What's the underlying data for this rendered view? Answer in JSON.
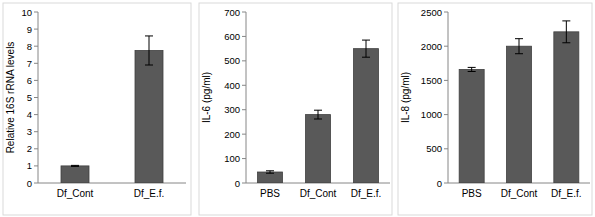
{
  "chart_data": [
    {
      "type": "bar",
      "ylabel": "Relative 16S rRNA levels",
      "categories": [
        "Df_Cont",
        "Df_E.f."
      ],
      "values": [
        1,
        7.75
      ],
      "errors": [
        0.03,
        0.85
      ],
      "color": "#595959",
      "ylim": [
        0,
        10
      ],
      "yticks": [
        0,
        1,
        2,
        3,
        4,
        5,
        6,
        7,
        8,
        9,
        10
      ],
      "grid": false
    },
    {
      "type": "bar",
      "ylabel": "IL-6 (pg/ml)",
      "categories": [
        "PBS",
        "Df_Cont",
        "Df_E.f."
      ],
      "values": [
        45,
        280,
        550
      ],
      "errors": [
        5,
        18,
        35
      ],
      "color": "#595959",
      "ylim": [
        0,
        700
      ],
      "yticks": [
        0,
        100,
        200,
        300,
        400,
        500,
        600,
        700
      ],
      "grid": false
    },
    {
      "type": "bar",
      "ylabel": "IL-8 (pg/ml)",
      "categories": [
        "PBS",
        "Df_Cont",
        "Df_E.f."
      ],
      "values": [
        1660,
        2000,
        2210
      ],
      "errors": [
        30,
        110,
        160
      ],
      "color": "#595959",
      "ylim": [
        0,
        2500
      ],
      "yticks": [
        0,
        500,
        1000,
        1500,
        2000,
        2500
      ],
      "grid": false
    }
  ]
}
